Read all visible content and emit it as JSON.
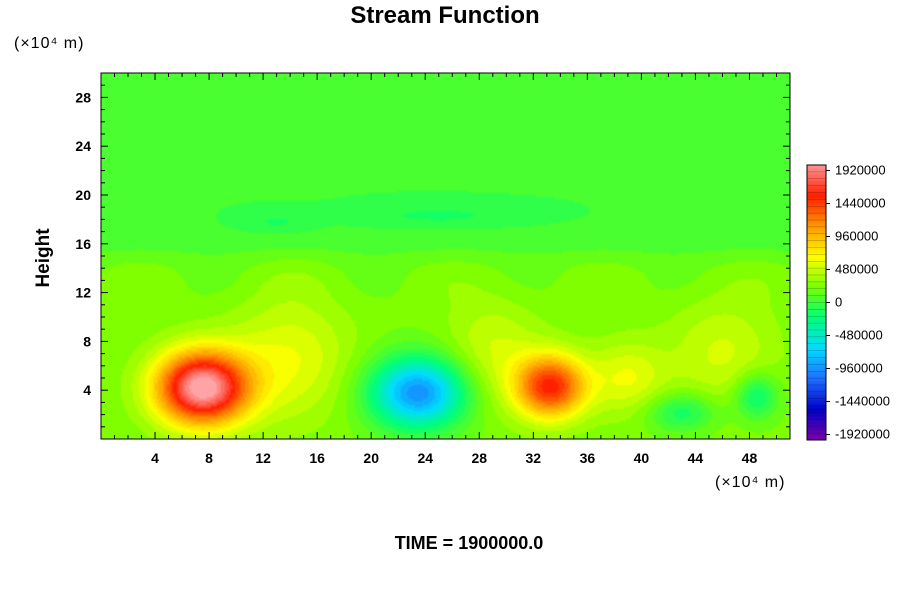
{
  "chart_data": {
    "type": "heatmap",
    "title": "Stream Function",
    "ylabel": "Height",
    "y_unit": "(×10⁴ m)",
    "x_unit": "(×10⁴ m)",
    "x_ticks": [
      4,
      8,
      12,
      16,
      20,
      24,
      28,
      32,
      36,
      40,
      44,
      48
    ],
    "y_ticks": [
      4,
      8,
      12,
      16,
      20,
      24,
      28
    ],
    "xlim": [
      0,
      51
    ],
    "ylim": [
      0,
      30
    ],
    "colorbar": {
      "ticks": [
        1920000,
        1440000,
        960000,
        480000,
        0,
        -480000,
        -960000,
        -1440000,
        -1920000
      ],
      "tick_labels": [
        "1920000",
        "1440000",
        "960000",
        "480000",
        "0",
        "-480000",
        "-960000",
        "-1440000",
        "-1920000"
      ],
      "range": [
        -2000000,
        2000000
      ],
      "colors": [
        "#7a00a8",
        "#0000c8",
        "#1e6eff",
        "#00dcff",
        "#00ff78",
        "#78ff00",
        "#ffff00",
        "#ff9600",
        "#ff1e00",
        "#ff9696"
      ]
    },
    "features": [
      {
        "x": 7.5,
        "y": 4.2,
        "value": 1800000
      },
      {
        "x": 23.5,
        "y": 4.0,
        "value": -1150000
      },
      {
        "x": 33.3,
        "y": 4.3,
        "value": 1250000
      },
      {
        "x": 43,
        "y": 2.2,
        "value": -450000
      },
      {
        "x": 48.5,
        "y": 3.5,
        "value": -500000
      }
    ],
    "annotation": "TIME = 1900000.0"
  }
}
